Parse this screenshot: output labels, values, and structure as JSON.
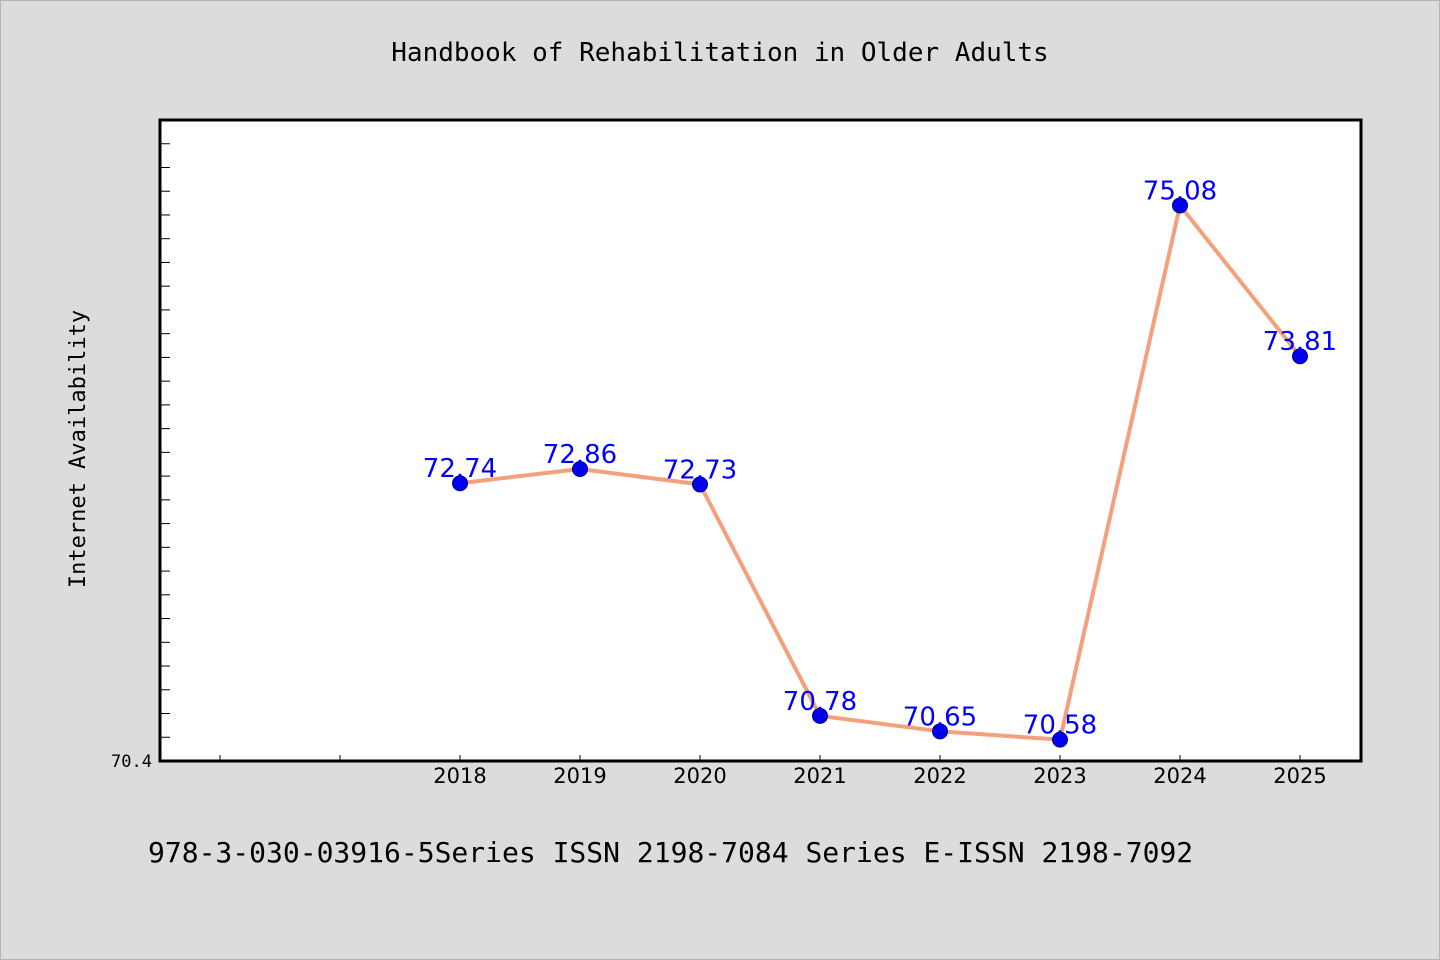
{
  "chart_data": {
    "type": "line",
    "title": "Handbook of Rehabilitation in Older Adults",
    "footer": "978-3-030-03916-5Series ISSN 2198-7084 Series E-ISSN 2198-7092",
    "xlabel": "",
    "ylabel": "Internet Availability",
    "x": [
      "2018",
      "2019",
      "2020",
      "2021",
      "2022",
      "2023",
      "2024",
      "2025"
    ],
    "series": [
      {
        "values": [
          72.74,
          72.86,
          72.73,
          70.78,
          70.65,
          70.58,
          75.08,
          73.81
        ],
        "labels": [
          "72.74",
          "72.86",
          "72.73",
          "70.78",
          "70.65",
          "70.58",
          "75.08",
          "73.81"
        ],
        "line_color": "#f4a07c",
        "marker_color": "#0000ee",
        "label_color": "#0000ff"
      }
    ],
    "y_tick_labels": [
      "70.4"
    ],
    "ylim": [
      70.4,
      75.8
    ],
    "grid": false,
    "legend": "none",
    "colors": {
      "background": "#dcdcdc",
      "plot_background": "#ffffff",
      "frame": "#000000"
    }
  }
}
